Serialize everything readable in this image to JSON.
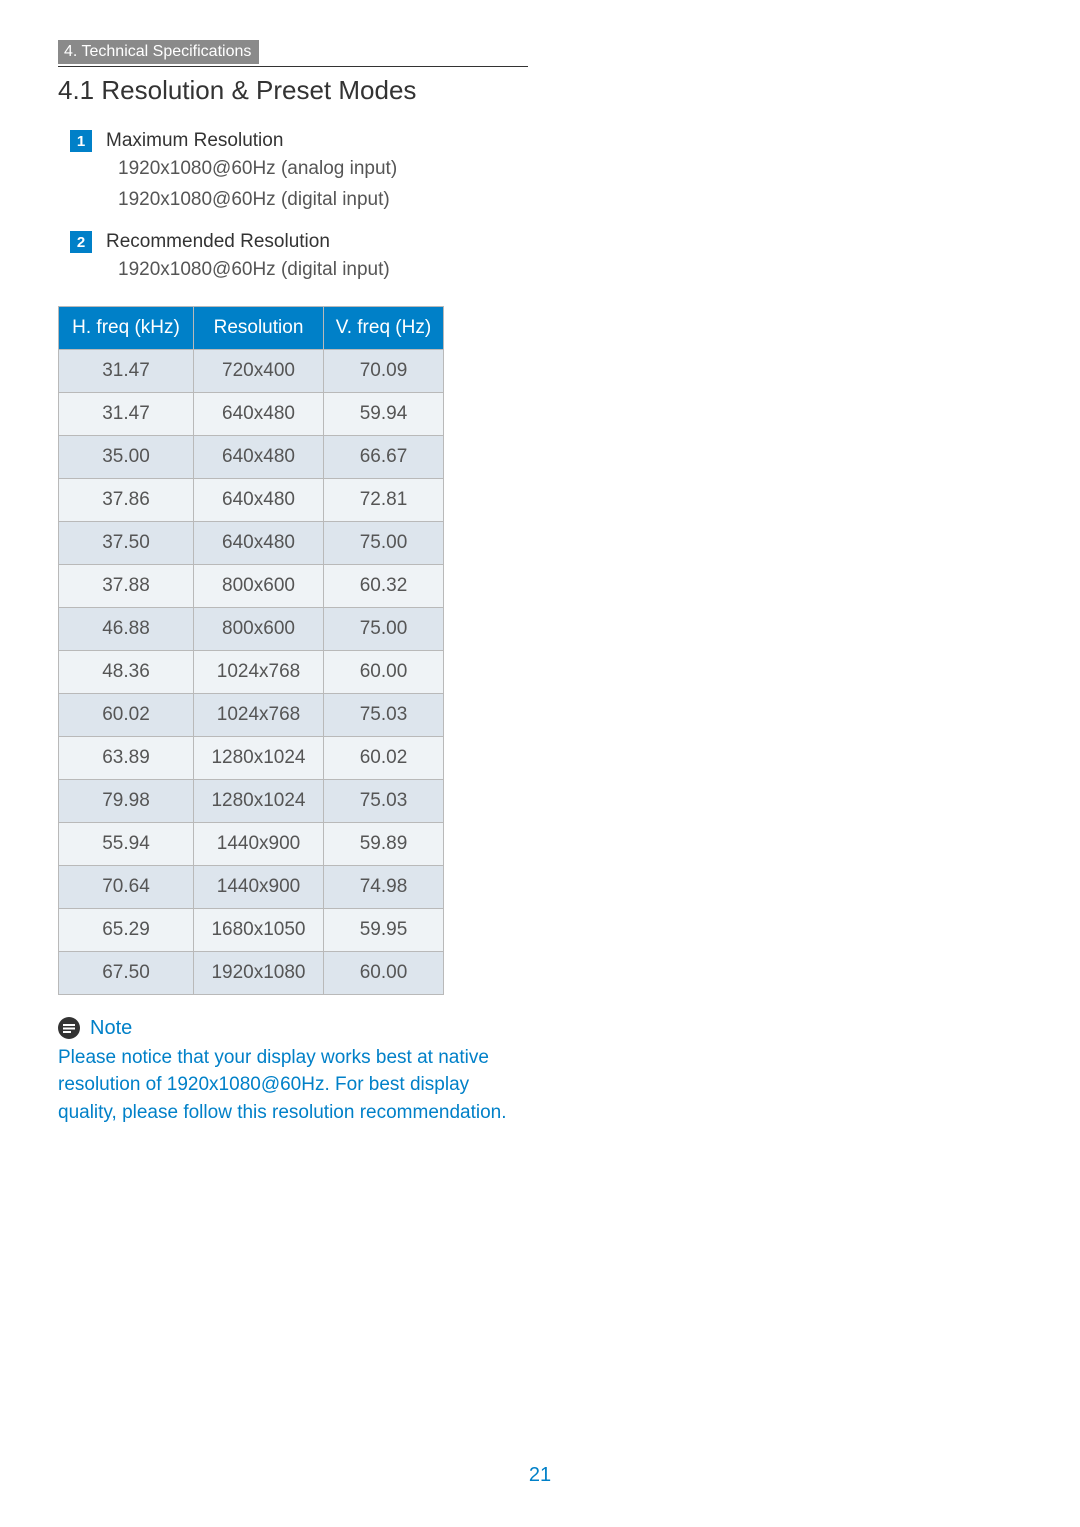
{
  "header": {
    "bar_label": "4. Technical Specifications"
  },
  "section": {
    "title": "4.1  Resolution & Preset Modes"
  },
  "items": [
    {
      "num": "1",
      "heading": "Maximum Resolution",
      "lines": [
        "1920x1080@60Hz (analog input)",
        "1920x1080@60Hz (digital input)"
      ]
    },
    {
      "num": "2",
      "heading": "Recommended Resolution",
      "lines": [
        "1920x1080@60Hz (digital input)"
      ]
    }
  ],
  "table": {
    "columns": [
      "H. freq (kHz)",
      "Resolution",
      "V. freq (Hz)"
    ],
    "rows": [
      [
        "31.47",
        "720x400",
        "70.09"
      ],
      [
        "31.47",
        "640x480",
        "59.94"
      ],
      [
        "35.00",
        "640x480",
        "66.67"
      ],
      [
        "37.86",
        "640x480",
        "72.81"
      ],
      [
        "37.50",
        "640x480",
        "75.00"
      ],
      [
        "37.88",
        "800x600",
        "60.32"
      ],
      [
        "46.88",
        "800x600",
        "75.00"
      ],
      [
        "48.36",
        "1024x768",
        "60.00"
      ],
      [
        "60.02",
        "1024x768",
        "75.03"
      ],
      [
        "63.89",
        "1280x1024",
        "60.02"
      ],
      [
        "79.98",
        "1280x1024",
        "75.03"
      ],
      [
        "55.94",
        "1440x900",
        "59.89"
      ],
      [
        "70.64",
        "1440x900",
        "74.98"
      ],
      [
        "65.29",
        "1680x1050",
        "59.95"
      ],
      [
        "67.50",
        "1920x1080",
        "60.00"
      ]
    ],
    "header_bg": "#0080c8",
    "row_odd_bg": "#dde5ed",
    "row_even_bg": "#eff3f6",
    "border_color": "#b9b9b9",
    "font_size_pt": 14
  },
  "note": {
    "title": "Note",
    "text": "Please notice that your display works best at native resolution of 1920x1080@60Hz. For best display quality, please follow this resolution recommendation."
  },
  "page_number": "21",
  "colors": {
    "accent_blue": "#0080c8",
    "header_bar_bg": "#8a8a8a",
    "text_body": "#555555",
    "text_dark": "#333333",
    "background": "#ffffff"
  },
  "typography": {
    "section_title_pt": 20,
    "body_pt": 14,
    "font_family": "Gill Sans"
  }
}
